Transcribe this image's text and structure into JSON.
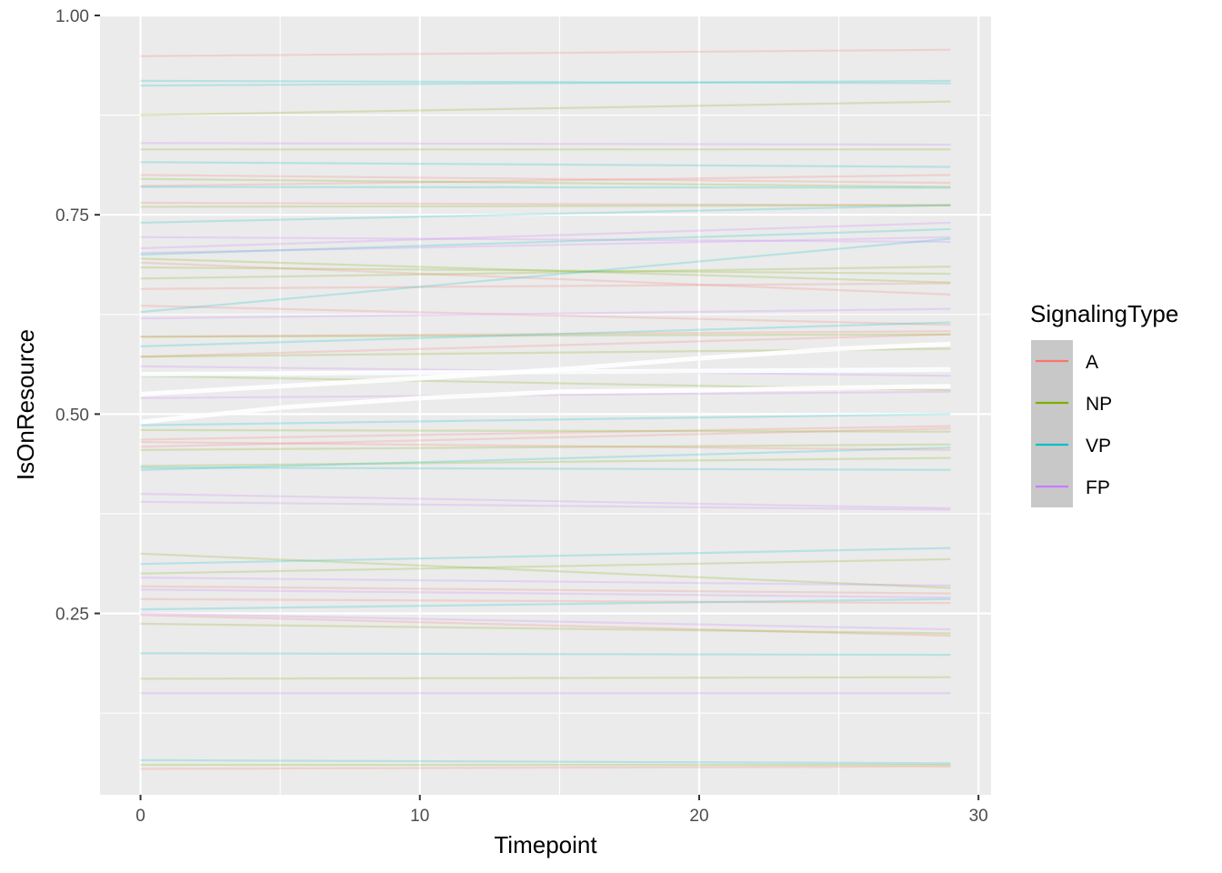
{
  "chart_data": {
    "type": "line",
    "xlabel": "Timepoint",
    "ylabel": "IsOnResource",
    "xlim": [
      -1.45,
      30.45
    ],
    "ylim": [
      0.0225,
      1.0
    ],
    "x_ticks": [
      0,
      10,
      20,
      30
    ],
    "x_tick_labels": [
      "0",
      "10",
      "20",
      "30"
    ],
    "y_ticks": [
      0.25,
      0.5,
      0.75,
      1.0
    ],
    "y_tick_labels": [
      "0.25",
      "0.50",
      "0.75",
      "1.00"
    ],
    "x_minor_ticks": [
      5,
      15,
      25
    ],
    "y_minor_ticks": [
      0.125,
      0.375,
      0.625,
      0.875
    ],
    "grid": true,
    "panel_background": "#EBEBEB",
    "grid_color": "#FFFFFF",
    "legend": {
      "title": "SignalingType",
      "placement": "right",
      "items": [
        {
          "label": "A",
          "color": "#F8766D"
        },
        {
          "label": "NP",
          "color": "#7CAE00"
        },
        {
          "label": "VP",
          "color": "#00BFC4"
        },
        {
          "label": "FP",
          "color": "#C77CFF"
        }
      ]
    },
    "series_x": [
      0,
      29
    ],
    "series": [
      {
        "group": "A",
        "values": [
          0.949,
          0.957
        ]
      },
      {
        "group": "A",
        "values": [
          0.8,
          0.79
        ]
      },
      {
        "group": "A",
        "values": [
          0.765,
          0.762
        ]
      },
      {
        "group": "A",
        "values": [
          0.786,
          0.8
        ]
      },
      {
        "group": "A",
        "values": [
          0.69,
          0.65
        ]
      },
      {
        "group": "A",
        "values": [
          0.657,
          0.664
        ]
      },
      {
        "group": "A",
        "values": [
          0.636,
          0.612
        ]
      },
      {
        "group": "A",
        "values": [
          0.597,
          0.604
        ]
      },
      {
        "group": "A",
        "values": [
          0.572,
          0.6
        ]
      },
      {
        "group": "A",
        "values": [
          0.468,
          0.485
        ]
      },
      {
        "group": "A",
        "values": [
          0.459,
          0.482
        ]
      },
      {
        "group": "A",
        "values": [
          0.465,
          0.455
        ]
      },
      {
        "group": "A",
        "values": [
          0.284,
          0.275
        ]
      },
      {
        "group": "A",
        "values": [
          0.268,
          0.263
        ]
      },
      {
        "group": "A",
        "values": [
          0.248,
          0.222
        ]
      },
      {
        "group": "A",
        "values": [
          0.055,
          0.058
        ]
      },
      {
        "group": "NP",
        "values": [
          0.875,
          0.892
        ]
      },
      {
        "group": "NP",
        "values": [
          0.795,
          0.785
        ]
      },
      {
        "group": "NP",
        "values": [
          0.832,
          0.832
        ]
      },
      {
        "group": "NP",
        "values": [
          0.76,
          0.762
        ]
      },
      {
        "group": "NP",
        "values": [
          0.695,
          0.665
        ]
      },
      {
        "group": "NP",
        "values": [
          0.684,
          0.676
        ]
      },
      {
        "group": "NP",
        "values": [
          0.67,
          0.685
        ]
      },
      {
        "group": "NP",
        "values": [
          0.597,
          0.6
        ]
      },
      {
        "group": "NP",
        "values": [
          0.572,
          0.582
        ]
      },
      {
        "group": "NP",
        "values": [
          0.548,
          0.53
        ]
      },
      {
        "group": "NP",
        "values": [
          0.48,
          0.478
        ]
      },
      {
        "group": "NP",
        "values": [
          0.455,
          0.462
        ]
      },
      {
        "group": "NP",
        "values": [
          0.435,
          0.445
        ]
      },
      {
        "group": "NP",
        "values": [
          0.325,
          0.282
        ]
      },
      {
        "group": "NP",
        "values": [
          0.3,
          0.318
        ]
      },
      {
        "group": "NP",
        "values": [
          0.237,
          0.225
        ]
      },
      {
        "group": "NP",
        "values": [
          0.168,
          0.17
        ]
      },
      {
        "group": "NP",
        "values": [
          0.06,
          0.06
        ]
      },
      {
        "group": "VP",
        "values": [
          0.918,
          0.915
        ]
      },
      {
        "group": "VP",
        "values": [
          0.912,
          0.918
        ]
      },
      {
        "group": "VP",
        "values": [
          0.816,
          0.81
        ]
      },
      {
        "group": "VP",
        "values": [
          0.785,
          0.784
        ]
      },
      {
        "group": "VP",
        "values": [
          0.74,
          0.762
        ]
      },
      {
        "group": "VP",
        "values": [
          0.7,
          0.732
        ]
      },
      {
        "group": "VP",
        "values": [
          0.628,
          0.72
        ]
      },
      {
        "group": "VP",
        "values": [
          0.585,
          0.615
        ]
      },
      {
        "group": "VP",
        "values": [
          0.548,
          0.556
        ]
      },
      {
        "group": "VP",
        "values": [
          0.486,
          0.5
        ]
      },
      {
        "group": "VP",
        "values": [
          0.43,
          0.458
        ]
      },
      {
        "group": "VP",
        "values": [
          0.433,
          0.43
        ]
      },
      {
        "group": "VP",
        "values": [
          0.312,
          0.332
        ]
      },
      {
        "group": "VP",
        "values": [
          0.255,
          0.268
        ]
      },
      {
        "group": "VP",
        "values": [
          0.2,
          0.198
        ]
      },
      {
        "group": "VP",
        "values": [
          0.066,
          0.062
        ]
      },
      {
        "group": "FP",
        "values": [
          0.84,
          0.838
        ]
      },
      {
        "group": "FP",
        "values": [
          0.722,
          0.716
        ]
      },
      {
        "group": "FP",
        "values": [
          0.708,
          0.74
        ]
      },
      {
        "group": "FP",
        "values": [
          0.702,
          0.722
        ]
      },
      {
        "group": "FP",
        "values": [
          0.62,
          0.632
        ]
      },
      {
        "group": "FP",
        "values": [
          0.56,
          0.548
        ]
      },
      {
        "group": "FP",
        "values": [
          0.52,
          0.528
        ]
      },
      {
        "group": "FP",
        "values": [
          0.4,
          0.382
        ]
      },
      {
        "group": "FP",
        "values": [
          0.39,
          0.38
        ]
      },
      {
        "group": "FP",
        "values": [
          0.295,
          0.285
        ]
      },
      {
        "group": "FP",
        "values": [
          0.28,
          0.27
        ]
      },
      {
        "group": "FP",
        "values": [
          0.25,
          0.23
        ]
      },
      {
        "group": "FP",
        "values": [
          0.15,
          0.15
        ]
      }
    ],
    "trend_lines": [
      {
        "x": [
          0,
          5,
          10,
          15,
          20,
          25,
          29
        ],
        "values": [
          0.49,
          0.508,
          0.52,
          0.528,
          0.53,
          0.533,
          0.535
        ]
      },
      {
        "x": [
          0,
          5,
          10,
          15,
          20,
          25,
          29
        ],
        "values": [
          0.525,
          0.535,
          0.545,
          0.556,
          0.57,
          0.582,
          0.588
        ]
      },
      {
        "x": [
          0,
          5,
          10,
          15,
          20,
          25,
          29
        ],
        "values": [
          0.55,
          0.551,
          0.552,
          0.553,
          0.554,
          0.555,
          0.556
        ]
      }
    ]
  }
}
